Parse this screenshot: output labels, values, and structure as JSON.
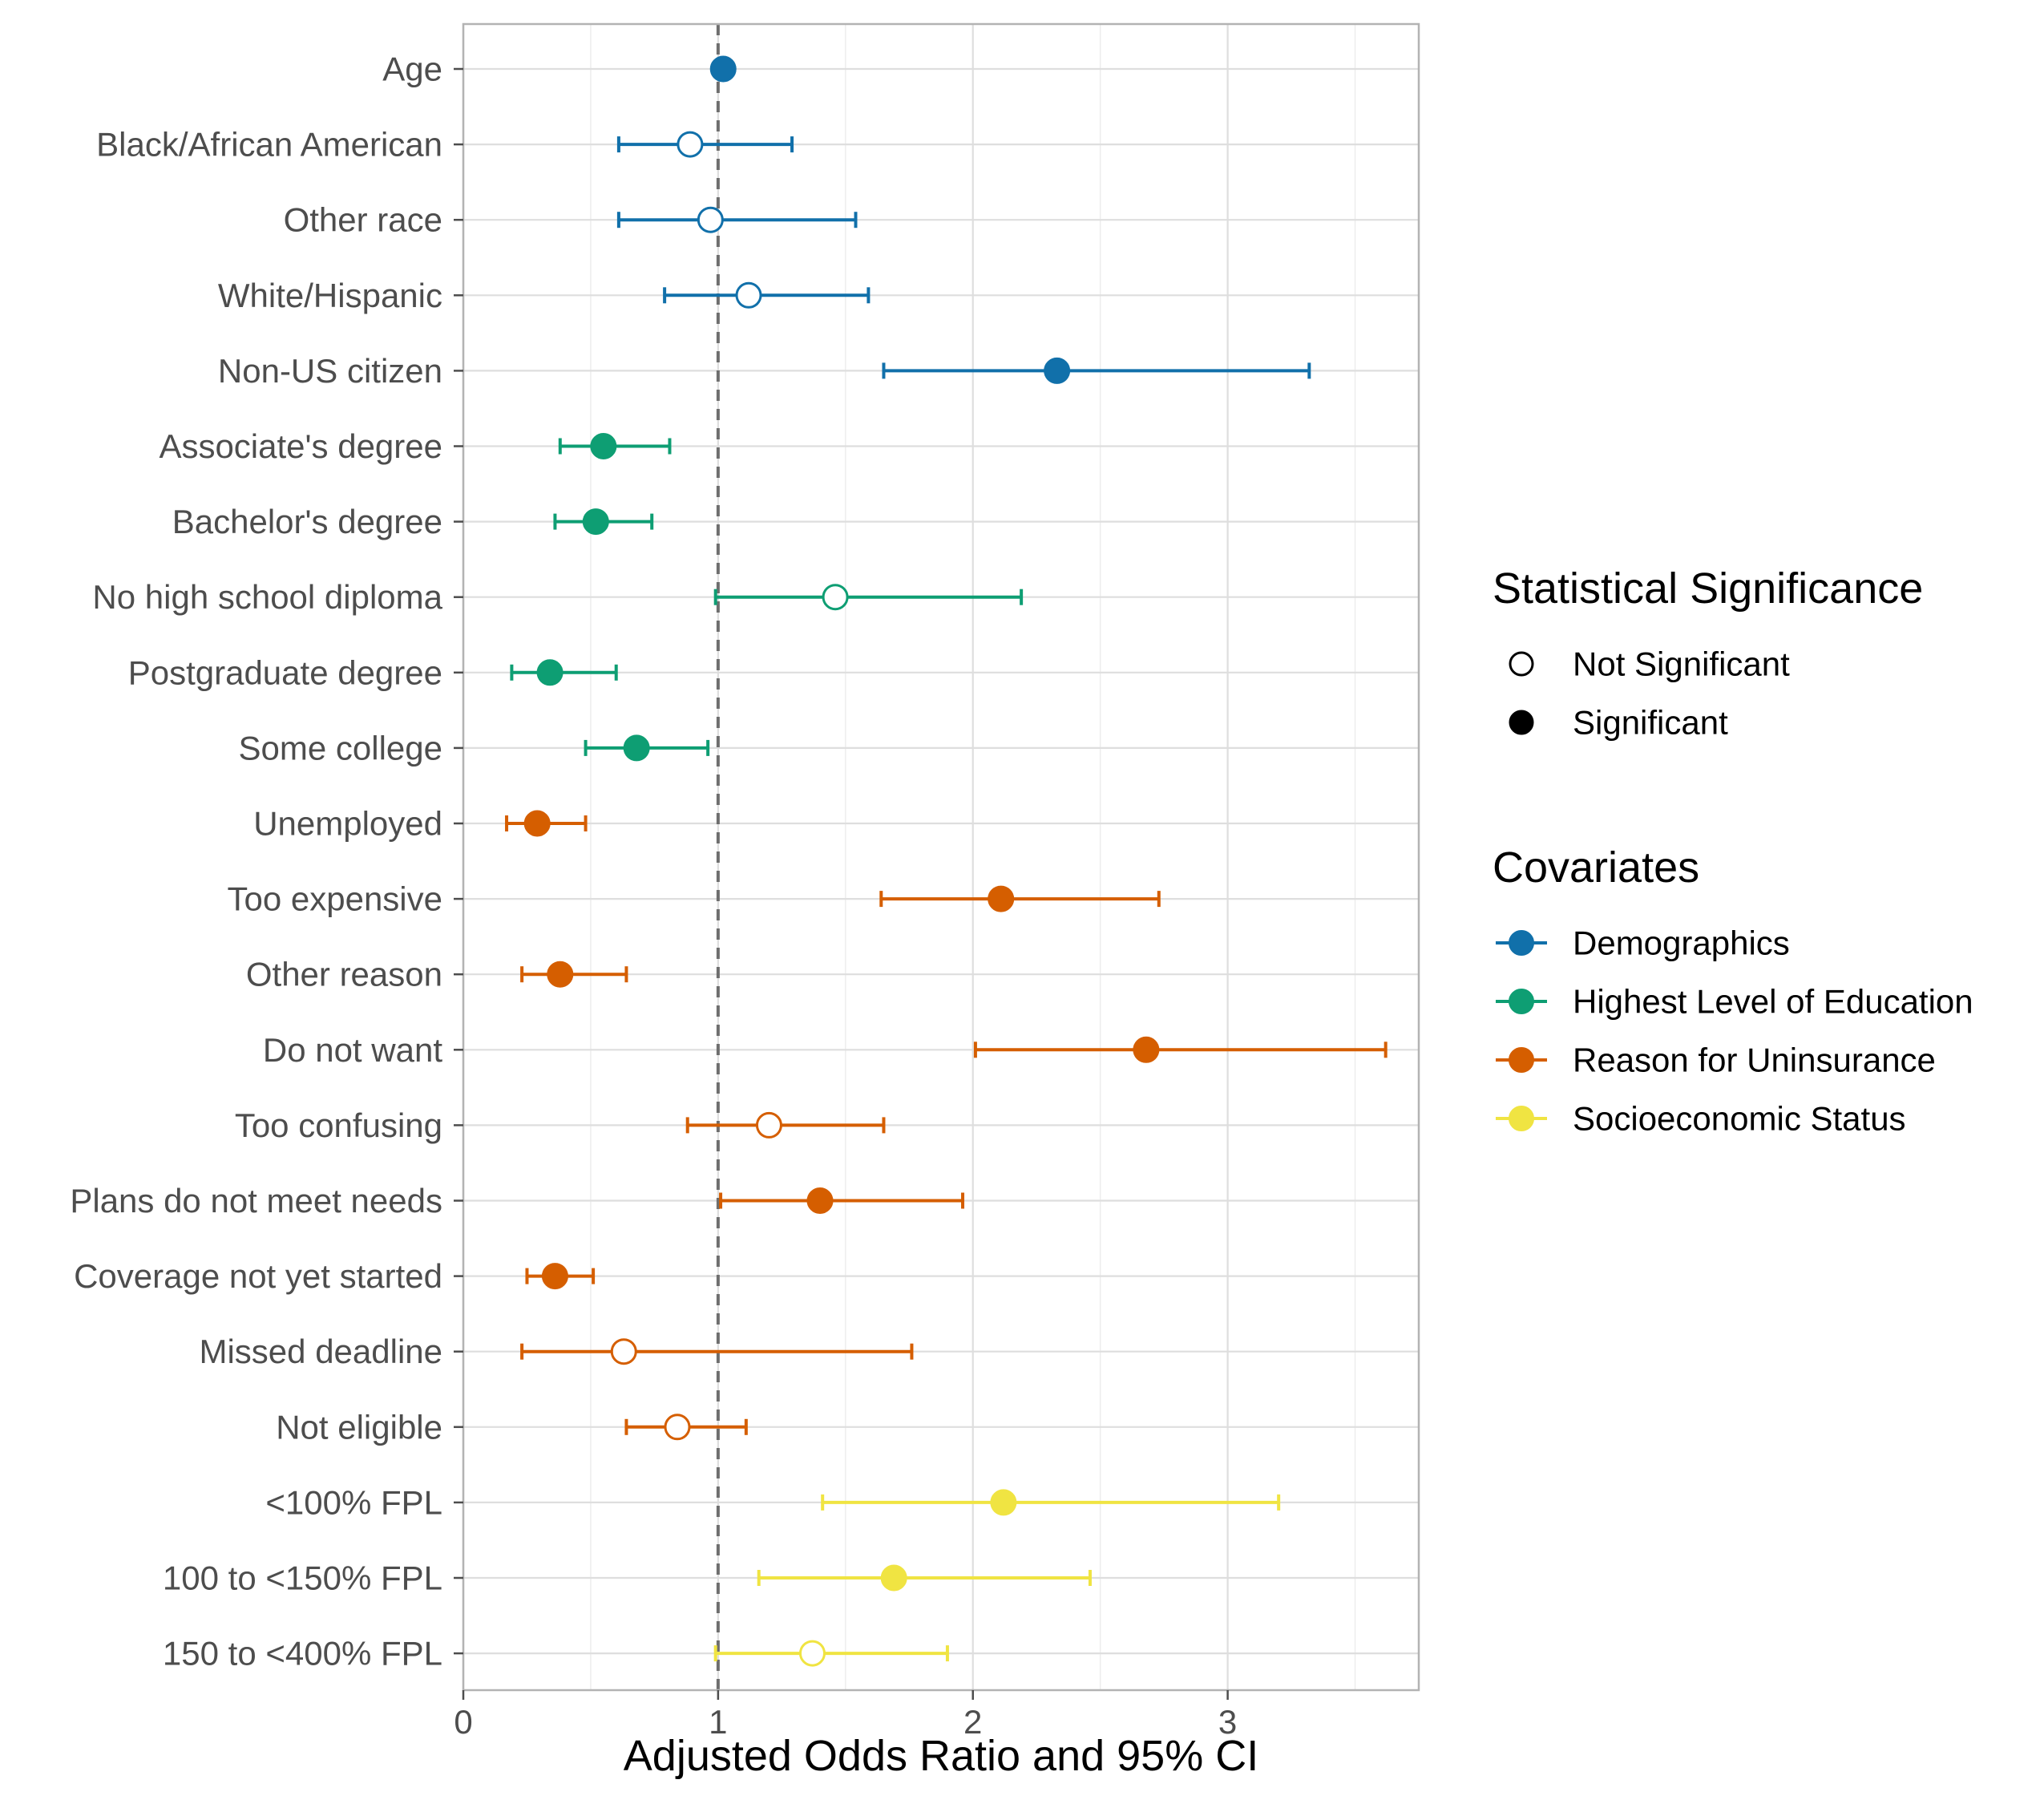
{
  "chart_data": {
    "type": "scatter",
    "subtype": "forest-plot",
    "xlabel": "Adjusted Odds Ratio and 95% CI",
    "ylabel": "",
    "xlim": [
      0,
      3.75
    ],
    "x_ticks": [
      0,
      1,
      2,
      3
    ],
    "reference_line": 1,
    "grid": true,
    "legend_position": "right",
    "legends": {
      "significance": {
        "title": "Statistical Significance",
        "items": [
          {
            "label": "Not Significant",
            "filled": false
          },
          {
            "label": "Significant",
            "filled": true
          }
        ]
      },
      "groups": {
        "title": "Covariates",
        "items": [
          {
            "label": "Demographics",
            "color": "#1170aa"
          },
          {
            "label": "Highest Level of Education",
            "color": "#0e9e73"
          },
          {
            "label": "Reason for Uninsurance",
            "color": "#d55e00"
          },
          {
            "label": "Socioeconomic Status",
            "color": "#f0e442"
          }
        ]
      }
    },
    "rows": [
      {
        "label": "Age",
        "group": "Demographics",
        "or": 1.02,
        "lo": 1.01,
        "hi": 1.03,
        "significant": true
      },
      {
        "label": "Black/African American",
        "group": "Demographics",
        "or": 0.89,
        "lo": 0.61,
        "hi": 1.29,
        "significant": false
      },
      {
        "label": "Other race",
        "group": "Demographics",
        "or": 0.97,
        "lo": 0.61,
        "hi": 1.54,
        "significant": false
      },
      {
        "label": "White/Hispanic",
        "group": "Demographics",
        "or": 1.12,
        "lo": 0.79,
        "hi": 1.59,
        "significant": false
      },
      {
        "label": "Non-US citizen",
        "group": "Demographics",
        "or": 2.33,
        "lo": 1.65,
        "hi": 3.32,
        "significant": true
      },
      {
        "label": "Associate's degree",
        "group": "Highest Level of Education",
        "or": 0.55,
        "lo": 0.38,
        "hi": 0.81,
        "significant": true
      },
      {
        "label": "Bachelor's degree",
        "group": "Highest Level of Education",
        "or": 0.52,
        "lo": 0.36,
        "hi": 0.74,
        "significant": true
      },
      {
        "label": "No high school diploma",
        "group": "Highest Level of Education",
        "or": 1.46,
        "lo": 0.99,
        "hi": 2.19,
        "significant": false
      },
      {
        "label": "Postgraduate degree",
        "group": "Highest Level of Education",
        "or": 0.34,
        "lo": 0.19,
        "hi": 0.6,
        "significant": true
      },
      {
        "label": "Some college",
        "group": "Highest Level of Education",
        "or": 0.68,
        "lo": 0.48,
        "hi": 0.96,
        "significant": true
      },
      {
        "label": "Unemployed",
        "group": "Reason for Uninsurance",
        "or": 0.29,
        "lo": 0.17,
        "hi": 0.48,
        "significant": true
      },
      {
        "label": "Too expensive",
        "group": "Reason for Uninsurance",
        "or": 2.11,
        "lo": 1.64,
        "hi": 2.73,
        "significant": true
      },
      {
        "label": "Other reason",
        "group": "Reason for Uninsurance",
        "or": 0.38,
        "lo": 0.23,
        "hi": 0.64,
        "significant": true
      },
      {
        "label": "Do not want",
        "group": "Reason for Uninsurance",
        "or": 2.68,
        "lo": 2.01,
        "hi": 3.62,
        "significant": true
      },
      {
        "label": "Too confusing",
        "group": "Reason for Uninsurance",
        "or": 1.2,
        "lo": 0.88,
        "hi": 1.65,
        "significant": false
      },
      {
        "label": "Plans do not meet needs",
        "group": "Reason for Uninsurance",
        "or": 1.4,
        "lo": 1.01,
        "hi": 1.96,
        "significant": true
      },
      {
        "label": "Coverage not yet started",
        "group": "Reason for Uninsurance",
        "or": 0.36,
        "lo": 0.25,
        "hi": 0.51,
        "significant": true
      },
      {
        "label": "Missed deadline",
        "group": "Reason for Uninsurance",
        "or": 0.63,
        "lo": 0.23,
        "hi": 1.76,
        "significant": false
      },
      {
        "label": "Not eligible",
        "group": "Reason for Uninsurance",
        "or": 0.84,
        "lo": 0.64,
        "hi": 1.11,
        "significant": false
      },
      {
        "label": "<100% FPL",
        "group": "Socioeconomic Status",
        "or": 2.12,
        "lo": 1.41,
        "hi": 3.2,
        "significant": true
      },
      {
        "label": "100 to <150% FPL",
        "group": "Socioeconomic Status",
        "or": 1.69,
        "lo": 1.16,
        "hi": 2.46,
        "significant": true
      },
      {
        "label": "150 to <400% FPL",
        "group": "Socioeconomic Status",
        "or": 1.37,
        "lo": 0.99,
        "hi": 1.9,
        "significant": false
      }
    ]
  }
}
